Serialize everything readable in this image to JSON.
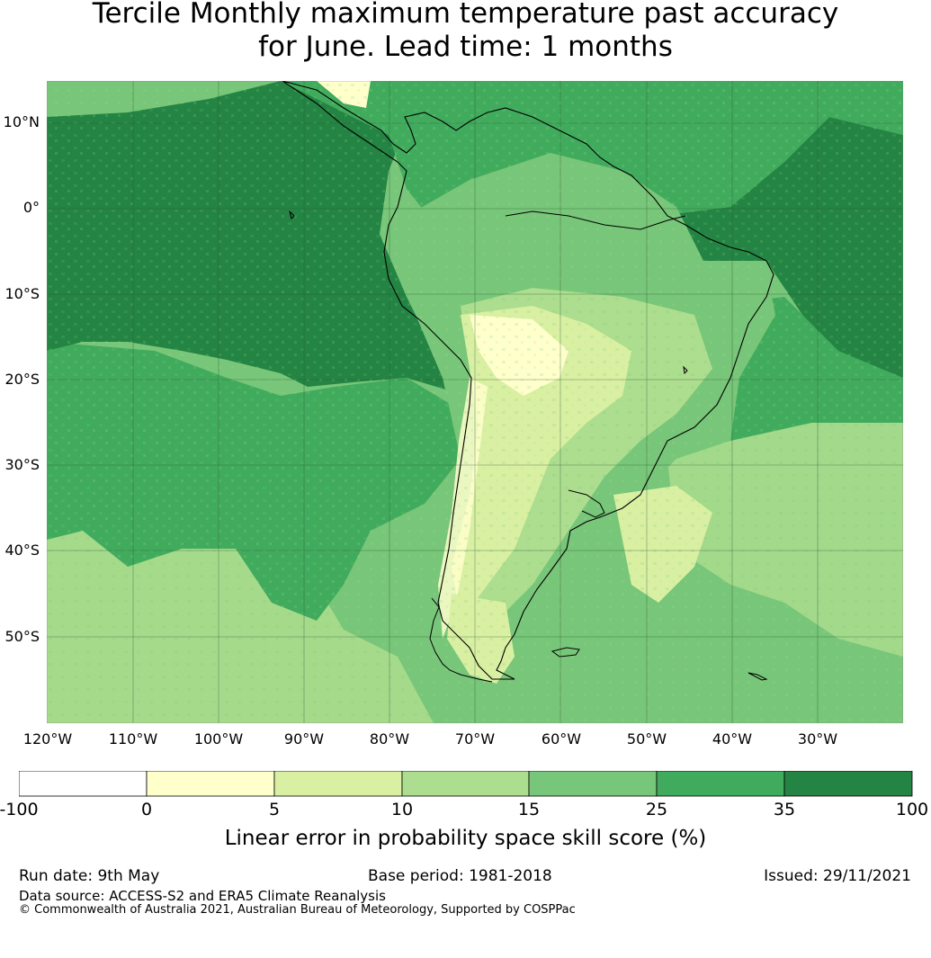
{
  "title_line1": "Tercile Monthly maximum temperature past accuracy",
  "title_line2": "for June. Lead time: 1 months",
  "map": {
    "lat_labels": [
      "10°N",
      "0°",
      "10°S",
      "20°S",
      "30°S",
      "40°S",
      "50°S"
    ],
    "lon_labels": [
      "120°W",
      "110°W",
      "100°W",
      "90°W",
      "80°W",
      "70°W",
      "60°W",
      "50°W",
      "40°W",
      "30°W"
    ]
  },
  "legend": {
    "boundaries": [
      "-100",
      "0",
      "5",
      "10",
      "15",
      "25",
      "35",
      "100"
    ],
    "colors": [
      "#ffffff",
      "#ffffcc",
      "#d9f0a3",
      "#addd8e",
      "#78c679",
      "#41ab5d",
      "#238443"
    ],
    "label": "Linear error in probability space skill score (%)"
  },
  "footer": {
    "run_date": "Run date: 9th May",
    "base_period": "Base period: 1981-2018",
    "issued": "Issued: 29/11/2021",
    "data_source": "Data source: ACCESS-S2 and ERA5 Climate Reanalysis",
    "copyright": "© Commonwealth of Australia 2021, Australian Bureau of Meteorology, Supported by COSPPac"
  }
}
